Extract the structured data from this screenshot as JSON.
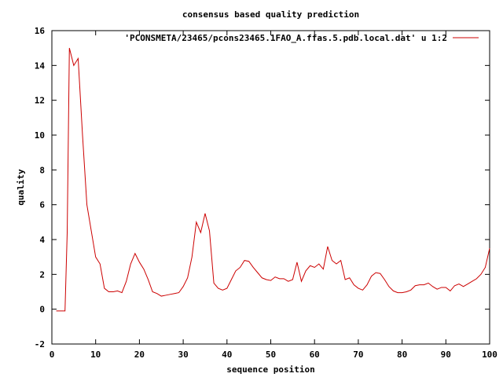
{
  "chart_data": {
    "type": "line",
    "title": "consensus based quality prediction",
    "xlabel": "sequence position",
    "ylabel": "quality",
    "xlim": [
      0,
      100
    ],
    "ylim": [
      -2,
      16
    ],
    "xticks": [
      0,
      10,
      20,
      30,
      40,
      50,
      60,
      70,
      80,
      90,
      100
    ],
    "yticks": [
      -2,
      0,
      2,
      4,
      6,
      8,
      10,
      12,
      14,
      16
    ],
    "grid": false,
    "legend_position": "top-right",
    "series": [
      {
        "name": "'PCONSMETA/23465/pcons23465.1FAO_A.ffas.5.pdb.local.dat' u 1:2",
        "color": "#cc0000",
        "x": [
          1,
          2,
          3,
          3.5,
          4,
          5,
          6,
          7,
          8,
          9,
          10,
          11,
          12,
          13,
          14,
          15,
          16,
          17,
          18,
          19,
          20,
          21,
          22,
          23,
          24,
          25,
          26,
          27,
          28,
          29,
          30,
          31,
          32,
          33,
          34,
          35,
          36,
          37,
          38,
          39,
          40,
          41,
          42,
          43,
          44,
          45,
          46,
          47,
          48,
          49,
          50,
          51,
          52,
          53,
          54,
          55,
          56,
          57,
          58,
          59,
          60,
          61,
          62,
          63,
          64,
          65,
          66,
          67,
          68,
          69,
          70,
          71,
          72,
          73,
          74,
          75,
          76,
          77,
          78,
          79,
          80,
          81,
          82,
          83,
          84,
          85,
          86,
          87,
          88,
          89,
          90,
          91,
          92,
          93,
          94,
          95,
          96,
          97,
          98,
          99,
          100
        ],
        "y": [
          -0.1,
          -0.1,
          -0.1,
          4.4,
          15.0,
          14.0,
          14.4,
          10.0,
          6.0,
          4.5,
          3.0,
          2.6,
          1.2,
          1.0,
          1.0,
          1.05,
          0.95,
          1.6,
          2.6,
          3.2,
          2.7,
          2.3,
          1.7,
          1.0,
          0.9,
          0.75,
          0.8,
          0.85,
          0.9,
          0.95,
          1.3,
          1.8,
          3.0,
          5.0,
          4.4,
          5.5,
          4.5,
          1.5,
          1.2,
          1.1,
          1.2,
          1.7,
          2.2,
          2.4,
          2.8,
          2.75,
          2.4,
          2.1,
          1.8,
          1.7,
          1.65,
          1.85,
          1.75,
          1.75,
          1.6,
          1.7,
          2.7,
          1.6,
          2.2,
          2.5,
          2.4,
          2.6,
          2.3,
          3.6,
          2.8,
          2.6,
          2.8,
          1.7,
          1.8,
          1.4,
          1.2,
          1.1,
          1.4,
          1.9,
          2.1,
          2.05,
          1.7,
          1.3,
          1.05,
          0.95,
          0.95,
          1.0,
          1.1,
          1.35,
          1.4,
          1.4,
          1.5,
          1.3,
          1.15,
          1.25,
          1.25,
          1.05,
          1.35,
          1.45,
          1.3,
          1.45,
          1.6,
          1.75,
          2.0,
          2.4,
          3.5
        ]
      }
    ]
  }
}
